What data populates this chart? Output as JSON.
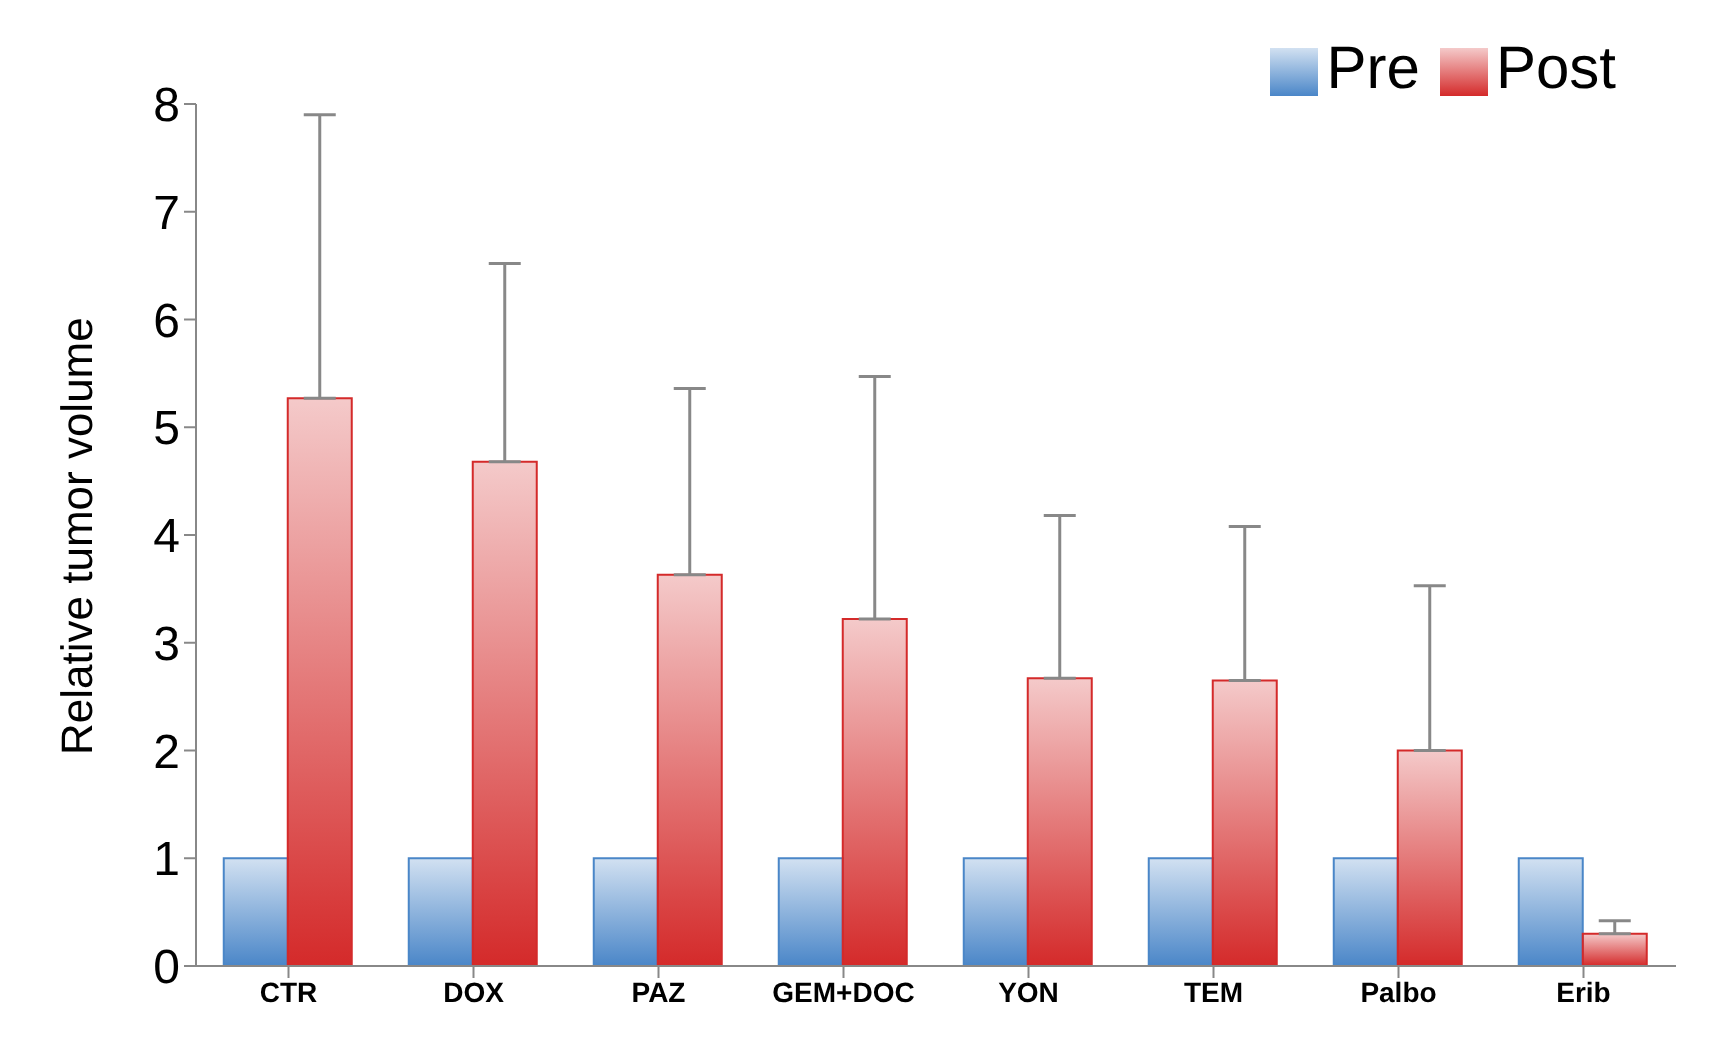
{
  "chart_data": {
    "type": "bar",
    "ylabel": "Relative tumor volume",
    "categories": [
      "CTR",
      "DOX",
      "PAZ",
      "GEM+DOC",
      "YON",
      "TEM",
      "Palbo",
      "Erib"
    ],
    "series": [
      {
        "name": "Pre",
        "color": "#4a86c8",
        "values": [
          1,
          1,
          1,
          1,
          1,
          1,
          1,
          1
        ]
      },
      {
        "name": "Post",
        "color": "#d42a2a",
        "values": [
          5.27,
          4.68,
          3.63,
          3.22,
          2.67,
          2.65,
          2.0,
          0.3
        ],
        "errors": [
          [
            5.27,
            7.9
          ],
          [
            4.68,
            6.52
          ],
          [
            3.63,
            5.36
          ],
          [
            3.22,
            5.47
          ],
          [
            2.67,
            4.18
          ],
          [
            2.65,
            4.08
          ],
          [
            2.0,
            3.53
          ],
          [
            0.3,
            0.42
          ]
        ]
      }
    ],
    "ylim": [
      0,
      8
    ],
    "yticks": [
      0,
      1,
      2,
      3,
      4,
      5,
      6,
      7,
      8
    ],
    "legend": "top right"
  }
}
